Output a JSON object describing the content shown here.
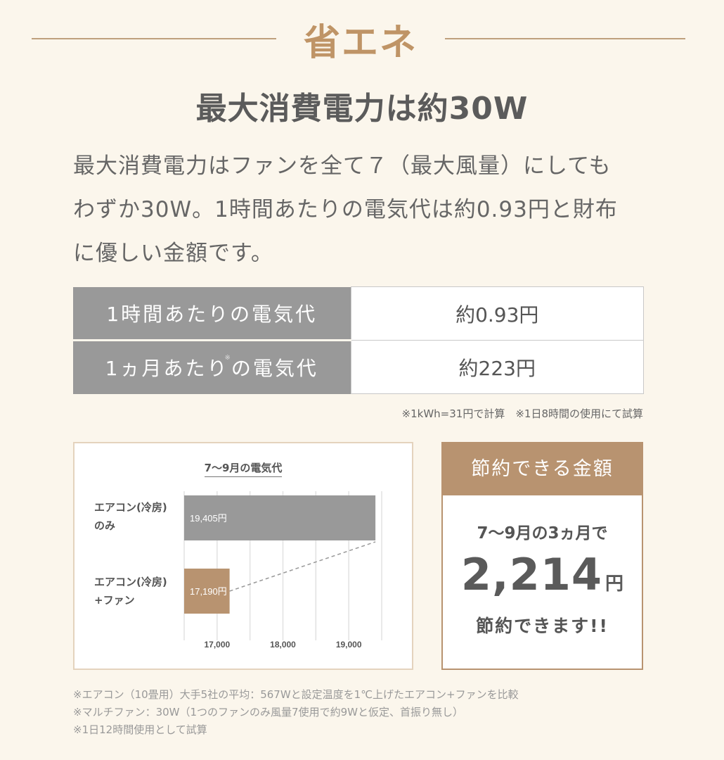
{
  "header": {
    "title": "省エネ",
    "headline": "最大消費電力は約30W",
    "description_lines": [
      "最大消費電力はファンを全て７（最大風量）にしても",
      "わずか30W。1時間あたりの電気代は約0.93円と財布",
      "に優しい金額です。"
    ]
  },
  "cost_table": {
    "rows": [
      {
        "label": "1時間あたりの電気代",
        "label_pre": "1時間あたりの電気代",
        "marker": "",
        "label_post": "",
        "value": "約0.93円"
      },
      {
        "label": "1ヵ月あたり※の電気代",
        "label_pre": "1ヵ月あたり",
        "marker": "※",
        "label_post": "の電気代",
        "value": "約223円"
      }
    ],
    "note": "※1kWh=31円で計算　※1日8時間の使用にて試算"
  },
  "chart_data": {
    "type": "bar",
    "orientation": "horizontal",
    "title": "7〜9月の電気代",
    "categories": [
      "エアコン(冷房)のみ",
      "エアコン(冷房)+ファン"
    ],
    "category_label_lines": [
      [
        "エアコン(冷房)",
        "のみ"
      ],
      [
        "エアコン(冷房)",
        "+ファン"
      ]
    ],
    "values": [
      19405,
      17190
    ],
    "value_labels": [
      "19,405円",
      "17,190円"
    ],
    "bar_colors": [
      "#999999",
      "#b89370"
    ],
    "xlabel": "",
    "ylabel": "",
    "xlim": [
      16500,
      19500
    ],
    "xticks": [
      17000,
      18000,
      19000
    ],
    "xtick_labels": [
      "17,000",
      "18,000",
      "19,000"
    ],
    "grid": true,
    "grid_step": 500,
    "annotations": [
      "dashed connector from end of 17,190 bar to end of 19,405 bar"
    ]
  },
  "savings": {
    "heading": "節約できる金額",
    "line1": "7〜9月の3ヵ月で",
    "amount": "2,214",
    "unit": "円",
    "line3": "節約できます!!"
  },
  "footnotes": [
    "※エアコン（10畳用）大手5社の平均：567Wと設定温度を1℃上げたエアコン+ファンを比較",
    "※マルチファン：30W（1つのファンのみ風量7使用で約9Wと仮定、首振り無し）",
    "※1日12時間使用として試算"
  ],
  "colors": {
    "background": "#fbf6ec",
    "accent": "#b89370",
    "title_accent": "#bf9466",
    "label_gray": "#999999",
    "text": "#5a5a5a"
  }
}
